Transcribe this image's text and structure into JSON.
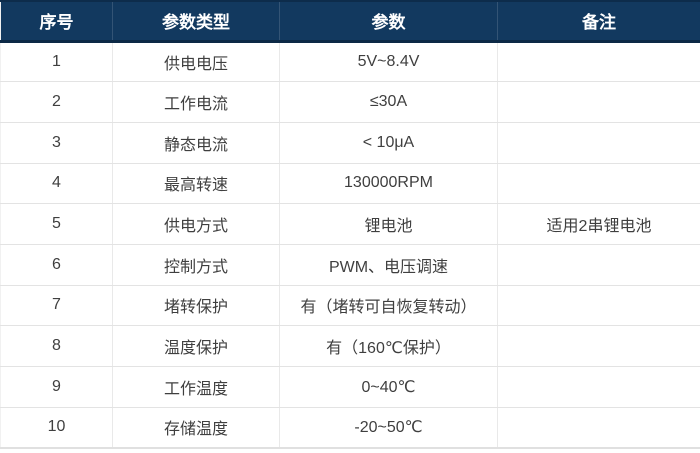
{
  "table": {
    "headers": [
      "序号",
      "参数类型",
      "参数",
      "备注"
    ],
    "rows": [
      {
        "no": "1",
        "type": "供电电压",
        "param": "5V~8.4V",
        "note": ""
      },
      {
        "no": "2",
        "type": "工作电流",
        "param": "≤30A",
        "note": ""
      },
      {
        "no": "3",
        "type": "静态电流",
        "param": "< 10μA",
        "note": ""
      },
      {
        "no": "4",
        "type": "最高转速",
        "param": "130000RPM",
        "note": ""
      },
      {
        "no": "5",
        "type": "供电方式",
        "param": "锂电池",
        "note": "适用2串锂电池"
      },
      {
        "no": "6",
        "type": "控制方式",
        "param": "PWM、电压调速",
        "note": ""
      },
      {
        "no": "7",
        "type": "堵转保护",
        "param": "有（堵转可自恢复转动）",
        "note": ""
      },
      {
        "no": "8",
        "type": "温度保护",
        "param": "有（160℃保护）",
        "note": ""
      },
      {
        "no": "9",
        "type": "工作温度",
        "param": "0~40℃",
        "note": ""
      },
      {
        "no": "10",
        "type": "存储温度",
        "param": "-20~50℃",
        "note": ""
      }
    ]
  },
  "colors": {
    "header_bg": "#12395F",
    "header_text": "#FFFFFF",
    "body_text": "#3F3F3F",
    "grid_line": "#E3E3E3"
  }
}
